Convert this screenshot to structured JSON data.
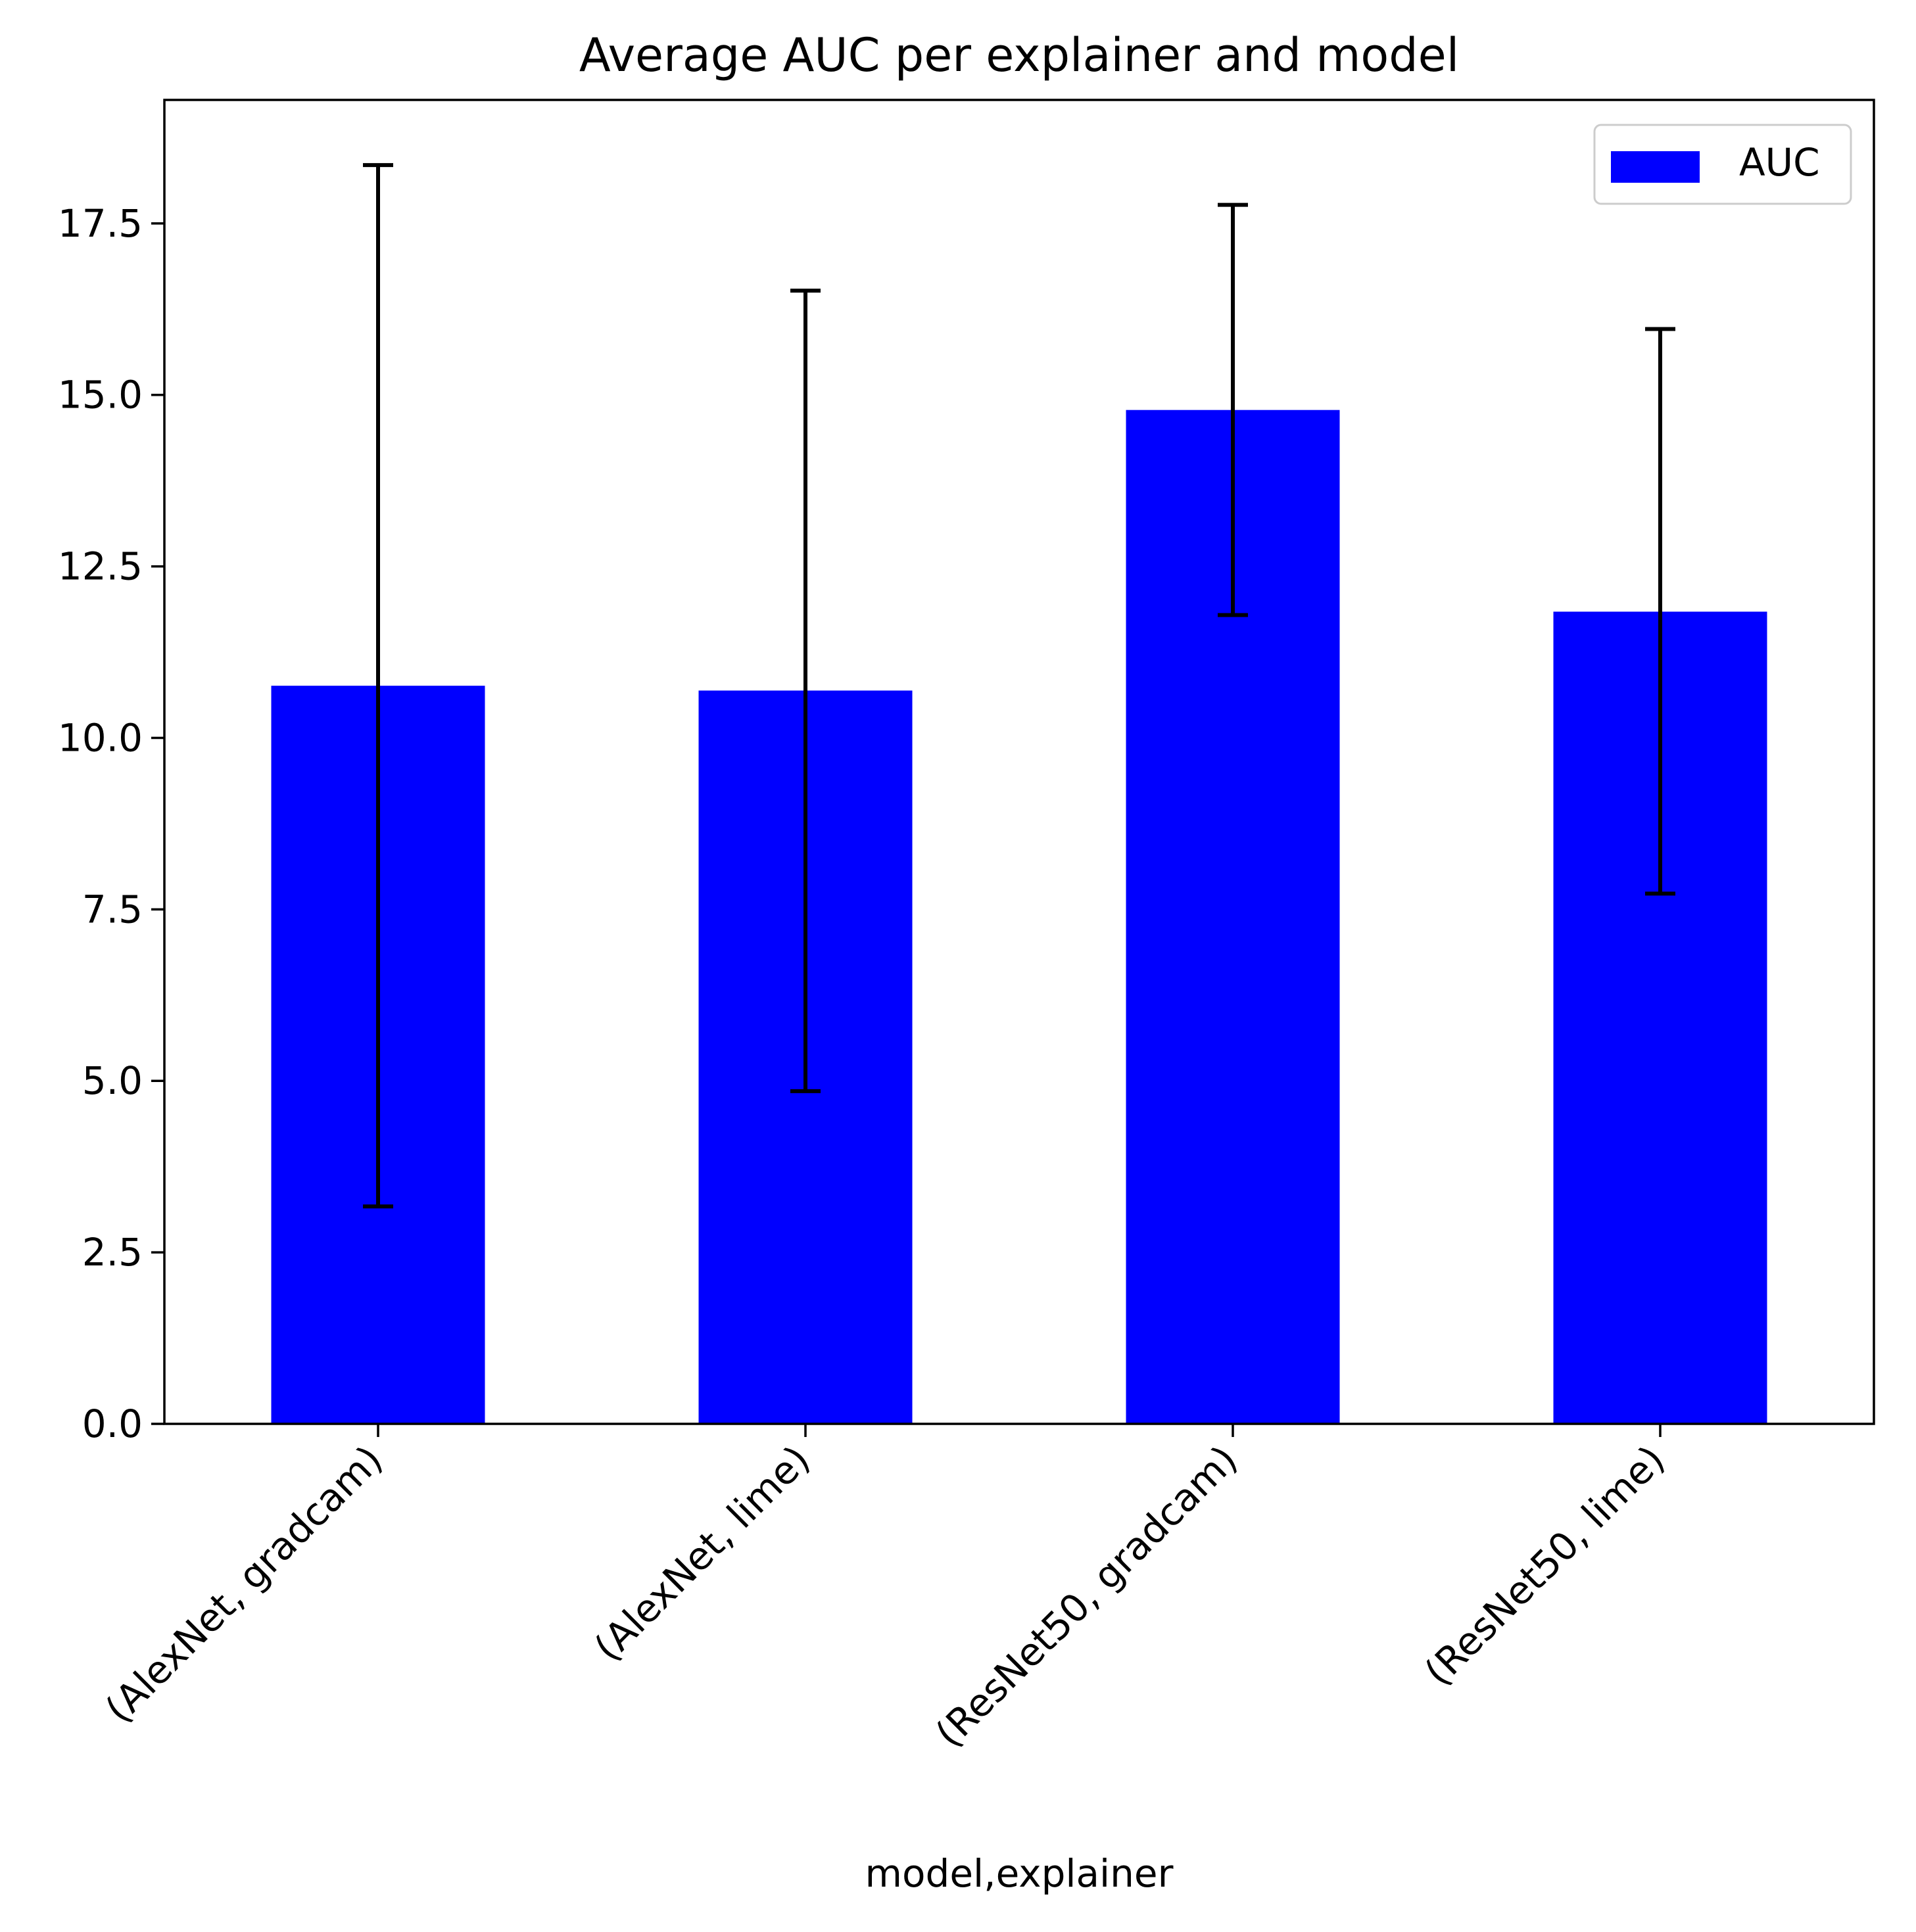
{
  "chart_data": {
    "type": "bar",
    "title": "Average AUC per explainer and model",
    "xlabel": "model,explainer",
    "ylabel": "",
    "categories": [
      "(AlexNet, gradcam)",
      "(AlexNet, lime)",
      "(ResNet50, gradcam)",
      "(ResNet50, lime)"
    ],
    "series": [
      {
        "name": "AUC",
        "values": [
          10.76,
          10.69,
          14.78,
          11.84
        ],
        "error_low": [
          3.17,
          4.85,
          11.79,
          7.73
        ],
        "error_high": [
          18.35,
          16.52,
          17.77,
          15.96
        ]
      }
    ],
    "ylim": [
      0,
      19.3
    ],
    "yticks": [
      0.0,
      2.5,
      5.0,
      7.5,
      10.0,
      12.5,
      15.0,
      17.5
    ],
    "ytick_labels": [
      "0.0",
      "2.5",
      "5.0",
      "7.5",
      "10.0",
      "12.5",
      "15.0",
      "17.5"
    ],
    "legend_position": "top-right",
    "grid": false,
    "colors": {
      "bar": "#0000ff",
      "errorbar": "#000000",
      "axes": "#000000"
    }
  }
}
